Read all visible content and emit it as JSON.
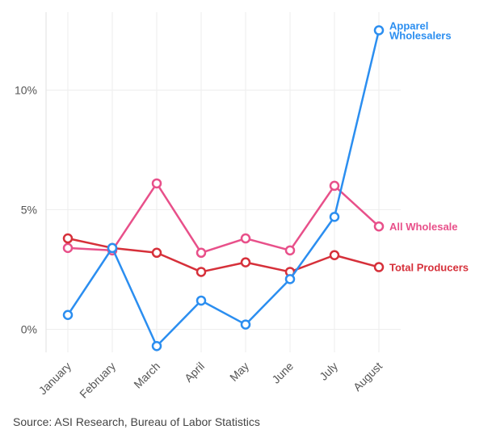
{
  "chart_data": {
    "type": "line",
    "categories": [
      "January",
      "February",
      "March",
      "April",
      "May",
      "June",
      "July",
      "August"
    ],
    "y_ticks": [
      {
        "value": 0,
        "label": "0%"
      },
      {
        "value": 5,
        "label": "5%"
      },
      {
        "value": 10,
        "label": "10%"
      }
    ],
    "ylim": [
      -0.9,
      13.4
    ],
    "grid": {
      "vertical": true,
      "horizontal": true
    },
    "series": [
      {
        "name": "All Wholesale",
        "label_lines": [
          "All Wholesale"
        ],
        "color": "#e8508a",
        "values": [
          3.4,
          3.3,
          6.1,
          3.2,
          3.8,
          3.3,
          6.0,
          4.3
        ]
      },
      {
        "name": "Total Producers",
        "label_lines": [
          "Total Producers"
        ],
        "color": "#d6303a",
        "values": [
          3.8,
          3.4,
          3.2,
          2.4,
          2.8,
          2.4,
          3.1,
          2.6
        ]
      },
      {
        "name": "Apparel Wholesalers",
        "label_lines": [
          "Apparel",
          "Wholesalers"
        ],
        "color": "#2b8ef0",
        "values": [
          0.6,
          3.4,
          -0.7,
          1.2,
          0.2,
          2.1,
          4.7,
          12.5
        ]
      }
    ]
  },
  "source": "Source: ASI Research, Bureau of Labor Statistics"
}
